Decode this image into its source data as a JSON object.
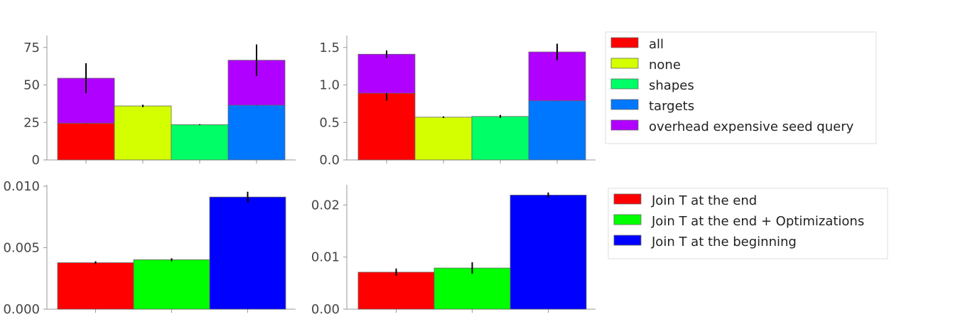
{
  "chart_data": [
    {
      "type": "bar",
      "stacked": true,
      "ylim": [
        0,
        82
      ],
      "yticks": [
        "0",
        "25",
        "50",
        "75"
      ],
      "ytick_values": [
        0,
        25,
        50,
        75
      ],
      "bars": [
        {
          "series": "all",
          "value": 24.5,
          "err": 0.3,
          "overhead": 30.0,
          "overhead_err": 10.0
        },
        {
          "series": "none",
          "value": 36.0,
          "err": 0.8
        },
        {
          "series": "shapes",
          "value": 23.5,
          "err": 0.3
        },
        {
          "series": "targets",
          "value": 36.5,
          "err": 0.3,
          "overhead": 30.0,
          "overhead_err": 10.5
        }
      ]
    },
    {
      "type": "bar",
      "stacked": true,
      "ylim": [
        0,
        1.64
      ],
      "yticks": [
        "0.0",
        "0.5",
        "1.0",
        "1.5"
      ],
      "ytick_values": [
        0,
        0.5,
        1.0,
        1.5
      ],
      "bars": [
        {
          "series": "all",
          "value": 0.89,
          "err": 0.1,
          "overhead": 0.52,
          "overhead_err": 0.05
        },
        {
          "series": "none",
          "value": 0.57,
          "err": 0.01
        },
        {
          "series": "shapes",
          "value": 0.58,
          "err": 0.02
        },
        {
          "series": "targets",
          "value": 0.79,
          "err": 0.005,
          "overhead": 0.65,
          "overhead_err": 0.11
        }
      ]
    },
    {
      "type": "bar",
      "stacked": false,
      "ylim": [
        0,
        0.01
      ],
      "yticks": [
        "0.000",
        "0.005",
        "0.010"
      ],
      "ytick_values": [
        0,
        0.005,
        0.01
      ],
      "bars": [
        {
          "series": "Join T at the end",
          "value": 0.00378,
          "err": 0.00012
        },
        {
          "series": "Join T at the end + Optimizations",
          "value": 0.00402,
          "err": 0.00012
        },
        {
          "series": "Join T at the beginning",
          "value": 0.00912,
          "err": 0.00043
        }
      ]
    },
    {
      "type": "bar",
      "stacked": false,
      "ylim": [
        0,
        0.0236
      ],
      "yticks": [
        "0.00",
        "0.01",
        "0.02"
      ],
      "ytick_values": [
        0,
        0.01,
        0.02
      ],
      "bars": [
        {
          "series": "Join T at the end",
          "value": 0.0071,
          "err": 0.0007
        },
        {
          "series": "Join T at the end + Optimizations",
          "value": 0.0079,
          "err": 0.0011
        },
        {
          "series": "Join T at the beginning",
          "value": 0.0219,
          "err": 0.0005
        }
      ]
    }
  ],
  "legends": [
    {
      "placement": "top-right",
      "entries": [
        {
          "label": "all",
          "color": "#ff0000"
        },
        {
          "label": "none",
          "color": "#d4ff00"
        },
        {
          "label": "shapes",
          "color": "#00ff66"
        },
        {
          "label": "targets",
          "color": "#0077ff"
        },
        {
          "label": "overhead expensive seed query",
          "color": "#b000ff"
        }
      ]
    },
    {
      "placement": "bottom-right",
      "entries": [
        {
          "label": "Join T at the end",
          "color": "#ff0000"
        },
        {
          "label": "Join T at the end + Optimizations",
          "color": "#00ff00"
        },
        {
          "label": "Join T at the beginning",
          "color": "#0000ff"
        }
      ]
    }
  ]
}
